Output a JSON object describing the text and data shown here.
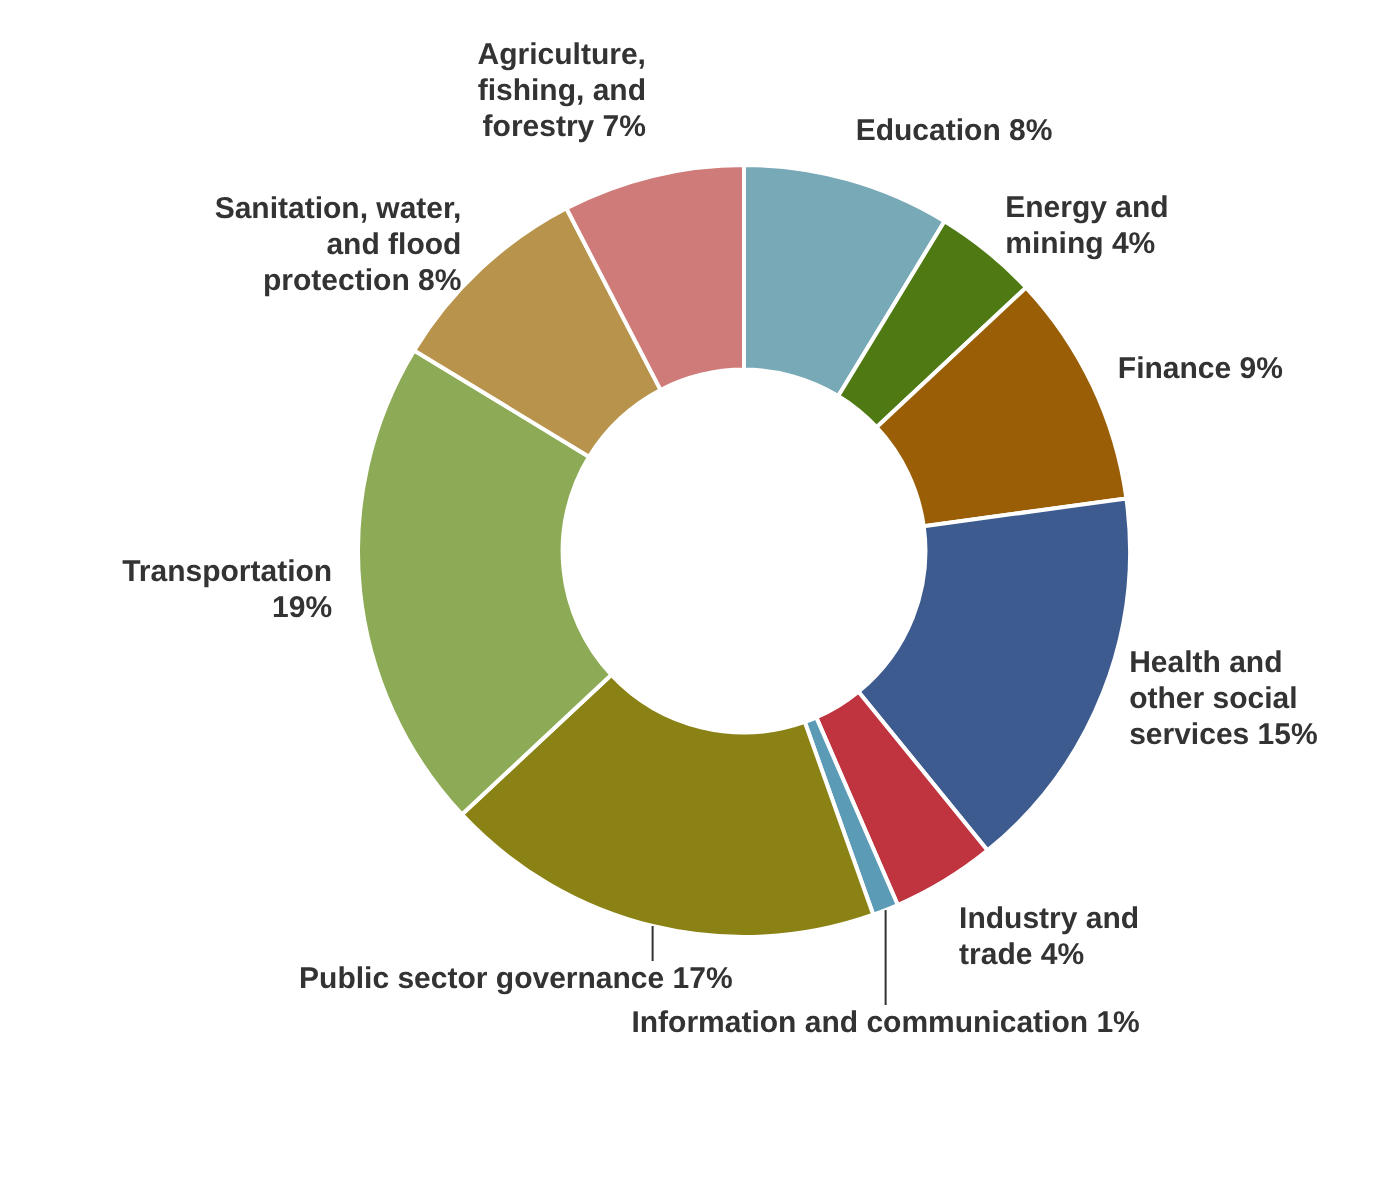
{
  "chart_data": {
    "type": "donut",
    "categories": [
      "Education",
      "Energy and mining",
      "Finance",
      "Health and other social services",
      "Industry and trade",
      "Information and communication",
      "Public sector governance",
      "Transportation",
      "Sanitation, water, and flood protection",
      "Agriculture, fishing, and forestry"
    ],
    "values": [
      8,
      4,
      9,
      15,
      4,
      1,
      17,
      19,
      8,
      7
    ],
    "value_labels": [
      "8%",
      "4%",
      "9%",
      "15%",
      "4%",
      "1%",
      "17%",
      "19%",
      "8%",
      "7%"
    ],
    "colors": [
      "#78a9b7",
      "#4f7a13",
      "#995e06",
      "#3e5b8f",
      "#bf343e",
      "#5b9bb6",
      "#8b8215",
      "#8dab56",
      "#b8934b",
      "#cf7b79"
    ],
    "legend": false
  }
}
